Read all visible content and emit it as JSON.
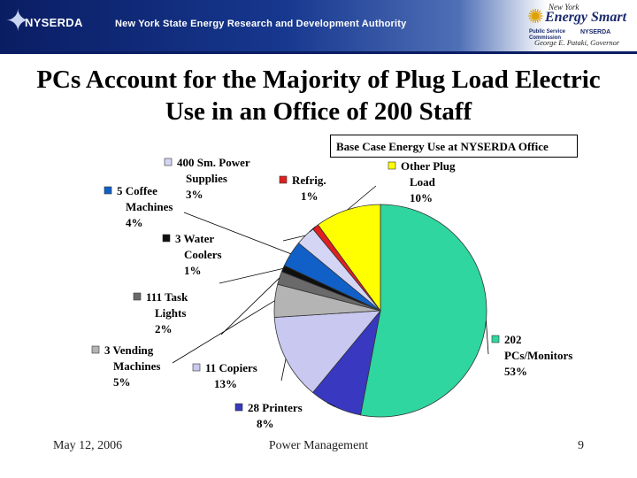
{
  "header": {
    "org_name": "NYSERDA",
    "agency_name": "New York State Energy Research and Development Authority",
    "logo": {
      "line1": "New York",
      "line2": "Energy Smart",
      "line3": "Public Service Commission",
      "line4": "NYSERDA",
      "line5": "George E. Pataki, Governor"
    }
  },
  "slide": {
    "title": "PCs Account for the Majority of Plug Load Electric Use in an Office of 200 Staff"
  },
  "chart_data": {
    "type": "pie",
    "title": "Base Case Energy Use at NYSERDA Office",
    "slices": [
      {
        "label": [
          "202",
          "PCs/Monitors",
          "53%"
        ],
        "value": 53,
        "color": "#2fd6a0",
        "marker": true
      },
      {
        "label": [
          "28 Printers",
          "8%"
        ],
        "value": 8,
        "color": "#3838c0",
        "marker": true
      },
      {
        "label": [
          "11 Copiers",
          "13%"
        ],
        "value": 13,
        "color": "#c8c8f0",
        "marker": true
      },
      {
        "label": [
          "3 Vending",
          "Machines",
          "5%"
        ],
        "value": 5,
        "color": "#b4b4b4",
        "marker": true
      },
      {
        "label": [
          "111 Task",
          "Lights",
          "2%"
        ],
        "value": 2,
        "color": "#6a6a6a",
        "marker": true
      },
      {
        "label": [
          "3 Water",
          "Coolers",
          "1%"
        ],
        "value": 1,
        "color": "#101010",
        "marker": true
      },
      {
        "label": [
          "5 Coffee",
          "Machines",
          "4%"
        ],
        "value": 4,
        "color": "#1060c8",
        "marker": true
      },
      {
        "label": [
          "400 Sm. Power",
          "Supplies",
          "3%"
        ],
        "value": 3,
        "color": "#d4d4f4",
        "marker": true
      },
      {
        "label": [
          "Refrig.",
          "1%"
        ],
        "value": 1,
        "color": "#e02020",
        "marker": true
      },
      {
        "label": [
          "Other Plug",
          "Load",
          "10%"
        ],
        "value": 10,
        "color": "#ffff00",
        "marker": true
      }
    ]
  },
  "footer": {
    "date": "May 12, 2006",
    "center": "Power Management",
    "page": "9"
  }
}
